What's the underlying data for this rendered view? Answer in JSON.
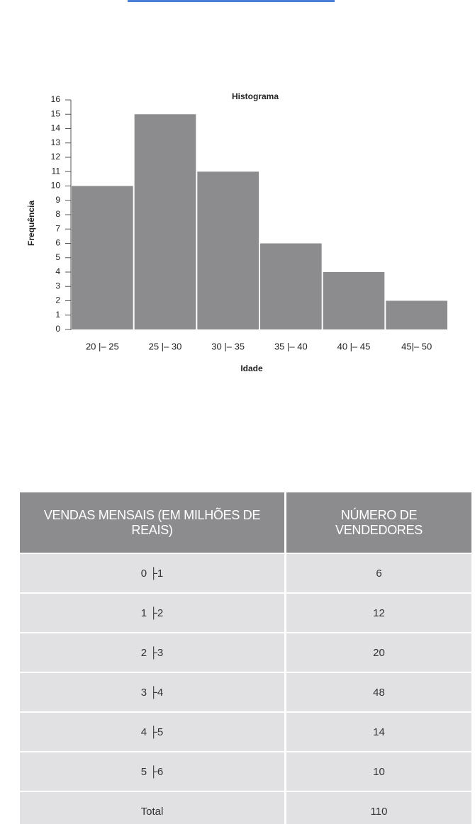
{
  "chart_data": {
    "type": "histogram",
    "title": "Histograma",
    "xlabel": "Idade",
    "ylabel": "Frequência",
    "categories": [
      "20 |– 25",
      "25 |– 30",
      "30 |– 35",
      "35 |– 40",
      "40 |– 45",
      "45|– 50"
    ],
    "values": [
      10,
      15,
      11,
      6,
      4,
      2
    ],
    "color": "#8c8c8e",
    "ylim": [
      0,
      16
    ],
    "yticks": [
      0,
      1,
      2,
      3,
      4,
      5,
      6,
      7,
      8,
      9,
      10,
      11,
      12,
      13,
      14,
      15,
      16
    ]
  },
  "table": {
    "header": [
      "VENDAS MENSAIS (EM MILHÕES DE REAIS)",
      "NÚMERO DE VENDEDORES"
    ],
    "rows": [
      [
        "0 ├1",
        "6"
      ],
      [
        "1 ├2",
        "12"
      ],
      [
        "2 ├3",
        "20"
      ],
      [
        "3 ├4",
        "48"
      ],
      [
        "4 ├5",
        "14"
      ],
      [
        "5 ├6",
        "10"
      ],
      [
        "Total",
        "110"
      ]
    ]
  }
}
